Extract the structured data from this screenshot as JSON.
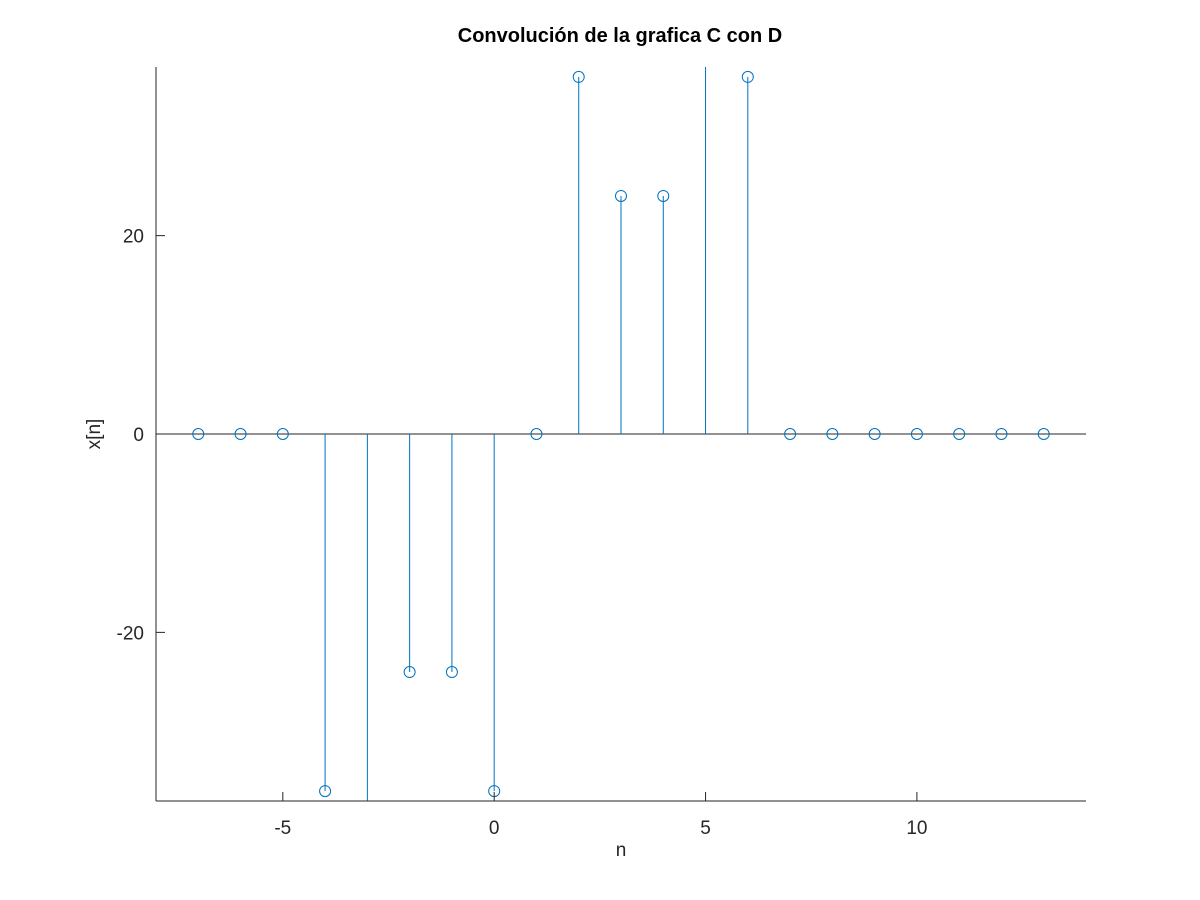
{
  "chart_data": {
    "type": "stem",
    "title": "Convolución de la grafica C con D",
    "xlabel": "n",
    "ylabel": "x[n]",
    "xlim": [
      -8,
      14
    ],
    "ylim": [
      -37,
      37
    ],
    "xticks": [
      -5,
      0,
      5,
      10
    ],
    "yticks": [
      -20,
      0,
      20
    ],
    "grid": false,
    "color": "#0072bd",
    "axis_color": "#262626",
    "baseline_color": "#262626",
    "series": [
      {
        "x": [
          -7,
          -6,
          -5,
          -4,
          -3,
          -2,
          -1,
          0,
          1,
          2,
          3,
          4,
          5,
          6,
          7,
          8,
          9,
          10,
          11,
          12,
          13
        ],
        "y": [
          0,
          0,
          0,
          -36,
          -48,
          -24,
          -24,
          -36,
          0,
          36,
          24,
          24,
          48,
          36,
          0,
          0,
          0,
          0,
          0,
          0,
          0
        ]
      }
    ]
  }
}
